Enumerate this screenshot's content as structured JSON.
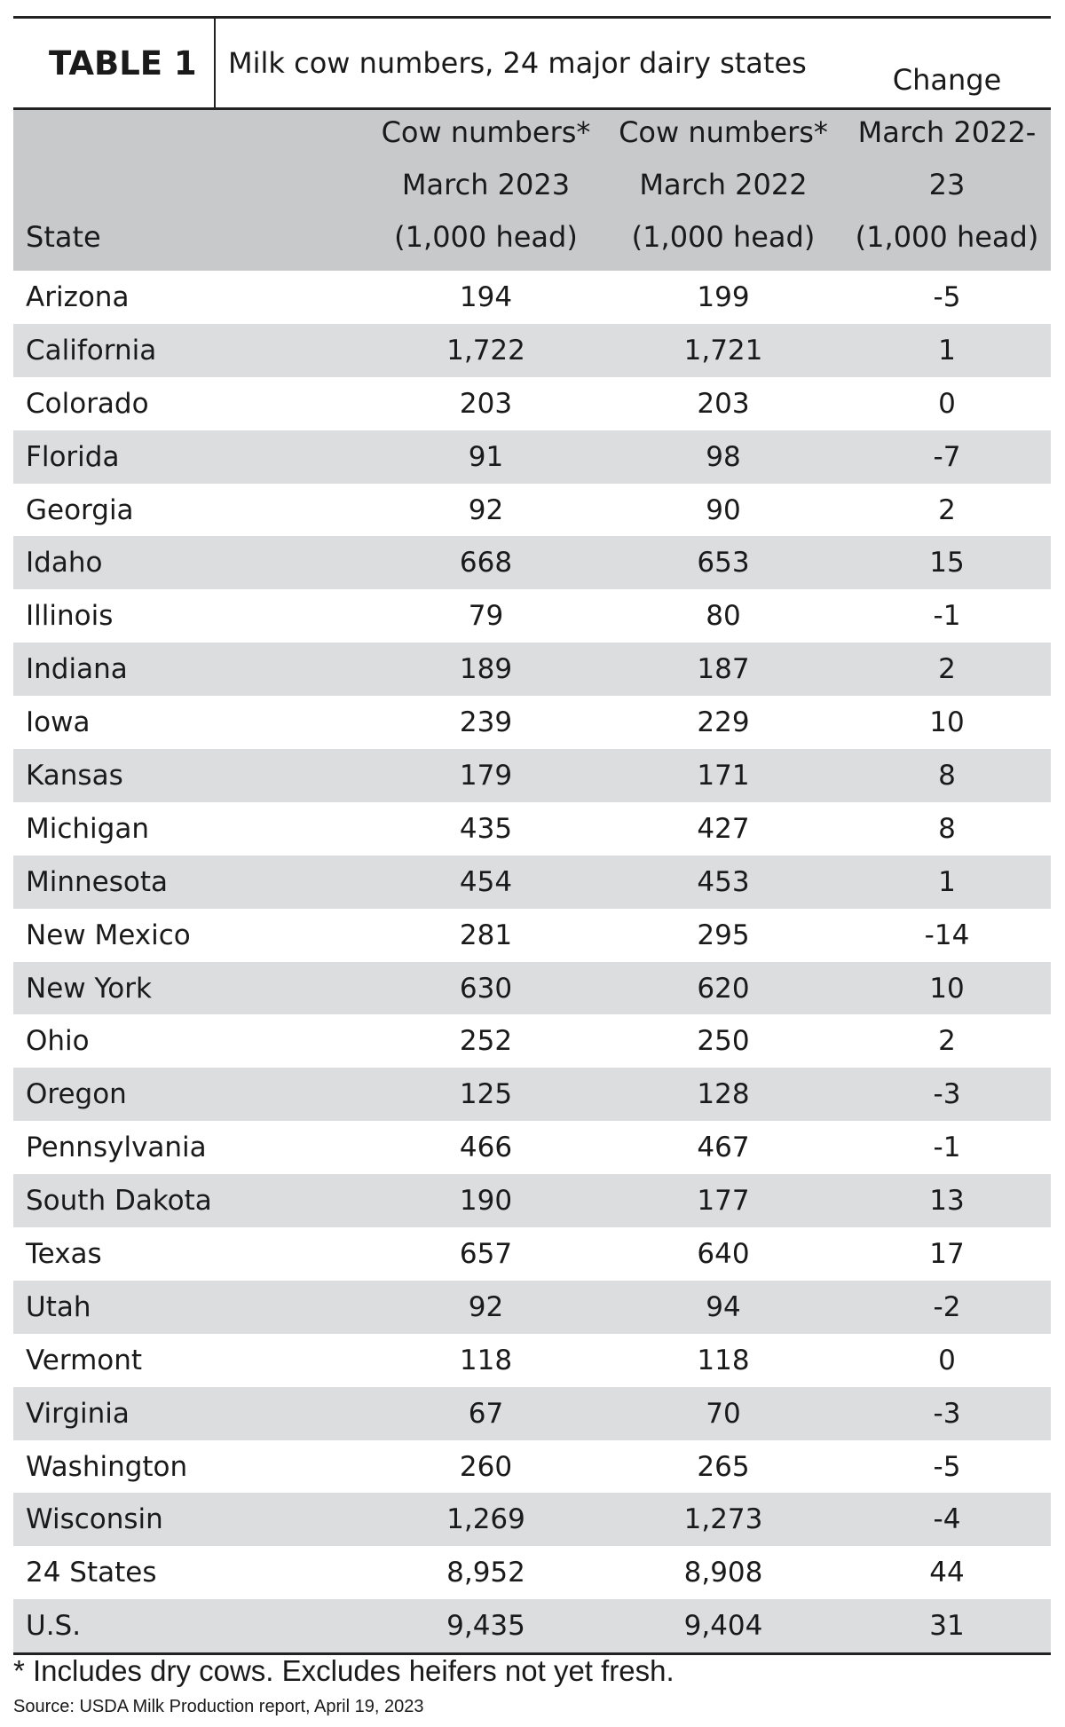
{
  "header": {
    "label": "TABLE 1",
    "title": "Milk cow numbers, 24 major dairy states"
  },
  "table": {
    "columns": [
      {
        "lines": [
          "State"
        ]
      },
      {
        "lines": [
          "Cow numbers*",
          "March 2023",
          "(1,000 head)"
        ]
      },
      {
        "lines": [
          "Cow numbers*",
          "March 2022",
          "(1,000 head)"
        ]
      },
      {
        "lines": [
          "Change",
          "March 2022-23",
          "(1,000 head)"
        ]
      }
    ],
    "rows": [
      [
        "Arizona",
        "194",
        "199",
        "-5"
      ],
      [
        "California",
        "1,722",
        "1,721",
        "1"
      ],
      [
        "Colorado",
        "203",
        "203",
        "0"
      ],
      [
        "Florida",
        "91",
        "98",
        "-7"
      ],
      [
        "Georgia",
        "92",
        "90",
        "2"
      ],
      [
        "Idaho",
        "668",
        "653",
        "15"
      ],
      [
        "Illinois",
        "79",
        "80",
        "-1"
      ],
      [
        "Indiana",
        "189",
        "187",
        "2"
      ],
      [
        "Iowa",
        "239",
        "229",
        "10"
      ],
      [
        "Kansas",
        "179",
        "171",
        "8"
      ],
      [
        "Michigan",
        "435",
        "427",
        "8"
      ],
      [
        "Minnesota",
        "454",
        "453",
        "1"
      ],
      [
        "New Mexico",
        "281",
        "295",
        "-14"
      ],
      [
        "New York",
        "630",
        "620",
        "10"
      ],
      [
        "Ohio",
        "252",
        "250",
        "2"
      ],
      [
        "Oregon",
        "125",
        "128",
        "-3"
      ],
      [
        "Pennsylvania",
        "466",
        "467",
        "-1"
      ],
      [
        "South Dakota",
        "190",
        "177",
        "13"
      ],
      [
        "Texas",
        "657",
        "640",
        "17"
      ],
      [
        "Utah",
        "92",
        "94",
        "-2"
      ],
      [
        "Vermont",
        "118",
        "118",
        "0"
      ],
      [
        "Virginia",
        "67",
        "70",
        "-3"
      ],
      [
        "Washington",
        "260",
        "265",
        "-5"
      ],
      [
        "Wisconsin",
        "1,269",
        "1,273",
        "-4"
      ],
      [
        "24 States",
        "8,952",
        "8,908",
        "44"
      ],
      [
        "U.S.",
        "9,435",
        "9,404",
        "31"
      ]
    ]
  },
  "footnote": "* Includes dry cows. Excludes heifers not yet fresh.",
  "source": "Source: USDA Milk Production report, April 19, 2023"
}
